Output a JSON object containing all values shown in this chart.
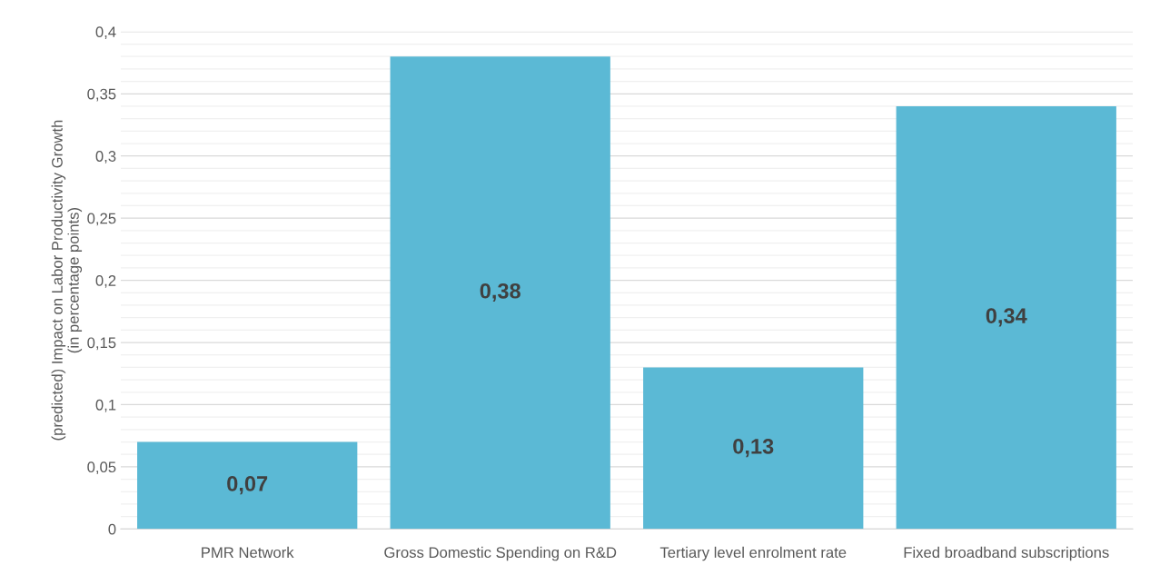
{
  "chart_data": {
    "type": "bar",
    "ylabel": "(predicted) Impact on Labor Productivity Growth\n(in percentage points)",
    "categories": [
      "PMR Network",
      "Gross Domestic Spending on R&D",
      "Tertiary level enrolment rate",
      "Fixed broadband subscriptions"
    ],
    "values": [
      0.07,
      0.38,
      0.13,
      0.34
    ],
    "value_labels": [
      "0,07",
      "0,38",
      "0,13",
      "0,34"
    ],
    "color": "#5bb9d5",
    "ylim": [
      0,
      0.4
    ],
    "yticks": [
      {
        "value": 0,
        "label": "0"
      },
      {
        "value": 0.01,
        "label": null
      },
      {
        "value": 0.02,
        "label": null
      },
      {
        "value": 0.03,
        "label": null
      },
      {
        "value": 0.04,
        "label": null
      },
      {
        "value": 0.05,
        "label": "0,05"
      },
      {
        "value": 0.06,
        "label": null
      },
      {
        "value": 0.07,
        "label": null
      },
      {
        "value": 0.08,
        "label": null
      },
      {
        "value": 0.09,
        "label": null
      },
      {
        "value": 0.1,
        "label": "0,1"
      },
      {
        "value": 0.11,
        "label": null
      },
      {
        "value": 0.12,
        "label": null
      },
      {
        "value": 0.13,
        "label": null
      },
      {
        "value": 0.14,
        "label": null
      },
      {
        "value": 0.15,
        "label": "0,15"
      },
      {
        "value": 0.16,
        "label": null
      },
      {
        "value": 0.17,
        "label": null
      },
      {
        "value": 0.18,
        "label": null
      },
      {
        "value": 0.19,
        "label": null
      },
      {
        "value": 0.2,
        "label": "0,2"
      },
      {
        "value": 0.21,
        "label": null
      },
      {
        "value": 0.22,
        "label": null
      },
      {
        "value": 0.23,
        "label": null
      },
      {
        "value": 0.24,
        "label": null
      },
      {
        "value": 0.25,
        "label": "0,25"
      },
      {
        "value": 0.26,
        "label": null
      },
      {
        "value": 0.27,
        "label": null
      },
      {
        "value": 0.28,
        "label": null
      },
      {
        "value": 0.29,
        "label": null
      },
      {
        "value": 0.3,
        "label": "0,3"
      },
      {
        "value": 0.31,
        "label": null
      },
      {
        "value": 0.32,
        "label": null
      },
      {
        "value": 0.33,
        "label": null
      },
      {
        "value": 0.34,
        "label": null
      },
      {
        "value": 0.35,
        "label": "0,35"
      },
      {
        "value": 0.36,
        "label": null
      },
      {
        "value": 0.37,
        "label": null
      },
      {
        "value": 0.38,
        "label": null
      },
      {
        "value": 0.39,
        "label": null
      },
      {
        "value": 0.4,
        "label": "0,4"
      }
    ],
    "grid": "y"
  }
}
